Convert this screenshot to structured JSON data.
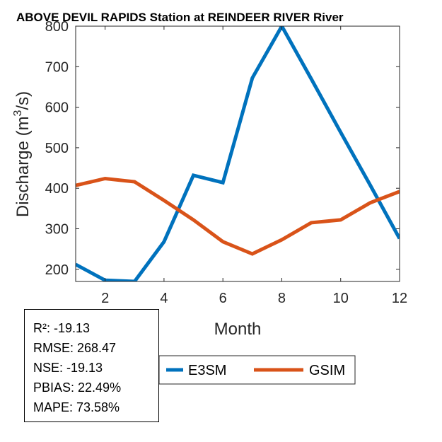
{
  "chart_data": {
    "type": "line",
    "title": "ABOVE DEVIL RAPIDS  Station at  REINDEER RIVER  River",
    "xlabel": "Month",
    "ylabel_prefix": "Discharge (m",
    "ylabel_sup": "3",
    "ylabel_suffix": "/s)",
    "xlim": [
      1,
      12
    ],
    "ylim": [
      170,
      800
    ],
    "xticks": [
      2,
      4,
      6,
      8,
      10,
      12
    ],
    "yticks": [
      200,
      300,
      400,
      500,
      600,
      700,
      800
    ],
    "x": [
      1,
      2,
      3,
      4,
      5,
      6,
      7,
      8,
      9,
      10,
      11,
      12
    ],
    "series": [
      {
        "name": "E3SM",
        "color": "#0072BD",
        "values": [
          212,
          173,
          170,
          268,
          432,
          414,
          672,
          800,
          670,
          538,
          408,
          276
        ]
      },
      {
        "name": "GSIM",
        "color": "#D95319",
        "values": [
          407,
          424,
          416,
          370,
          322,
          268,
          238,
          273,
          315,
          322,
          364,
          392
        ]
      }
    ],
    "grid": false,
    "legend_position": "bottom-center"
  },
  "stats": {
    "lines": [
      "R²: -19.13",
      "RMSE: 268.47",
      "NSE: -19.13",
      "PBIAS: 22.49%",
      "MAPE: 73.58%"
    ]
  }
}
